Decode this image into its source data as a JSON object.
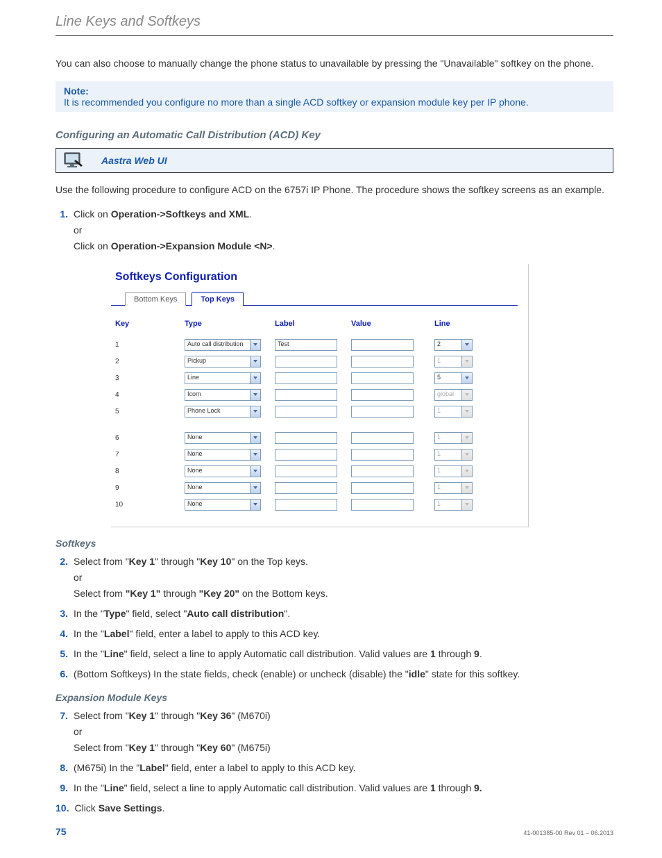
{
  "header": "Line Keys and Softkeys",
  "intro_para": "You can also choose to manually change the phone status to unavailable by pressing the \"Unavailable\" softkey on the phone.",
  "note": {
    "title": "Note:",
    "body": "It is recommended you configure no more than a single ACD softkey or expansion module key per IP phone."
  },
  "h2_configuring": "Configuring an Automatic Call Distribution (ACD) Key",
  "webui_label": "Aastra Web UI",
  "procedure_intro": "Use the following procedure to configure ACD on the 6757i IP Phone. The procedure shows the softkey screens as an example.",
  "step1": {
    "num": "1.",
    "line1_a": "Click on ",
    "line1_b": "Operation->Softkeys and XML",
    "line1_c": ".",
    "or": "or",
    "line2_a": "Click on ",
    "line2_b": "Operation->Expansion Module <N>",
    "line2_c": "."
  },
  "ui": {
    "title": "Softkeys Configuration",
    "tab_bottom": "Bottom Keys",
    "tab_top": "Top Keys",
    "columns": {
      "key": "Key",
      "type": "Type",
      "label": "Label",
      "value": "Value",
      "line": "Line"
    },
    "rows": [
      {
        "key": "1",
        "type": "Auto call distribution",
        "label": "Test",
        "line": "2",
        "line_disabled": false
      },
      {
        "key": "2",
        "type": "Pickup",
        "label": "",
        "line": "1",
        "line_disabled": true
      },
      {
        "key": "3",
        "type": "Line",
        "label": "",
        "line": "5",
        "line_disabled": false
      },
      {
        "key": "4",
        "type": "Icom",
        "label": "",
        "line": "global",
        "line_disabled": true
      },
      {
        "key": "5",
        "type": "Phone Lock",
        "label": "",
        "line": "1",
        "line_disabled": true
      }
    ],
    "rows2": [
      {
        "key": "6",
        "type": "None",
        "label": "",
        "line": "1",
        "line_disabled": true
      },
      {
        "key": "7",
        "type": "None",
        "label": "",
        "line": "1",
        "line_disabled": true
      },
      {
        "key": "8",
        "type": "None",
        "label": "",
        "line": "1",
        "line_disabled": true
      },
      {
        "key": "9",
        "type": "None",
        "label": "",
        "line": "1",
        "line_disabled": true
      },
      {
        "key": "10",
        "type": "None",
        "label": "",
        "line": "1",
        "line_disabled": true
      }
    ]
  },
  "h3_softkeys": "Softkeys",
  "step2": {
    "num": "2.",
    "l1": [
      "Select from \"",
      "Key 1",
      "\" through \"",
      "Key 10",
      "\" on the Top keys."
    ],
    "or": "or",
    "l2": [
      "Select from ",
      "\"Key 1\"",
      " through ",
      "\"Key 20\"",
      " on the Bottom keys."
    ]
  },
  "step3": {
    "num": "3.",
    "l": [
      "In the \"",
      "Type",
      "\" field, select \"",
      "Auto call distribution",
      "\"."
    ]
  },
  "step4": {
    "num": "4.",
    "l": [
      "In the \"",
      "Label",
      "\" field, enter a label to apply to this ACD key."
    ]
  },
  "step5": {
    "num": "5.",
    "l": [
      "In the \"",
      "Line",
      "\" field, select a line to apply Automatic call distribution. Valid values are ",
      "1",
      " through ",
      "9",
      "."
    ]
  },
  "step6": {
    "num": "6.",
    "l": [
      "(Bottom Softkeys) In the state fields, check (enable) or uncheck (disable) the \"",
      "idle",
      "\" state for this softkey."
    ]
  },
  "h3_expansion": "Expansion Module Keys",
  "step7": {
    "num": "7.",
    "l1": [
      "Select from \"",
      "Key 1",
      "\" through \"",
      "Key 36",
      "\" (M670i)"
    ],
    "or": "or",
    "l2": [
      "Select from \"",
      "Key 1",
      "\" through \"",
      "Key 60",
      "\" (M675i)"
    ]
  },
  "step8": {
    "num": "8.",
    "l": [
      "(M675i) In the \"",
      "Label",
      "\" field, enter a label to apply to this ACD key."
    ]
  },
  "step9": {
    "num": "9.",
    "l": [
      "In the \"",
      "Line",
      "\" field, select a line to apply Automatic call distribution. Valid values are ",
      "1",
      " through ",
      "9."
    ]
  },
  "step10": {
    "num": "10.",
    "l": [
      "Click ",
      "Save Settings",
      "."
    ]
  },
  "footer": {
    "page": "75",
    "docid": "41-001385-00 Rev 01 – 06.2013"
  }
}
